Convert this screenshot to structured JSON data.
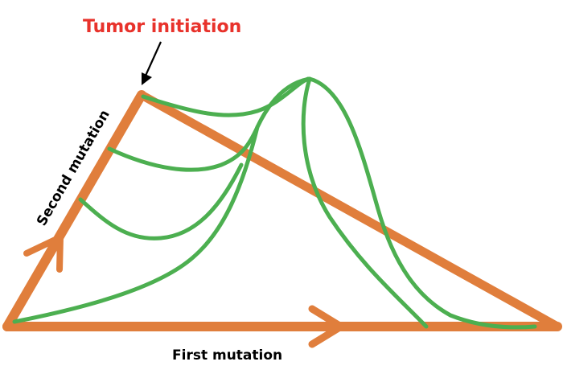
{
  "labels": {
    "tumor_initiation": "Tumor initiation",
    "second_mutation": "Second mutation",
    "first_mutation": "First mutation"
  },
  "colors": {
    "triangle": "#e07e3c",
    "curves": "#4caf50",
    "highlight_text": "#e8322b",
    "text": "#000000"
  }
}
